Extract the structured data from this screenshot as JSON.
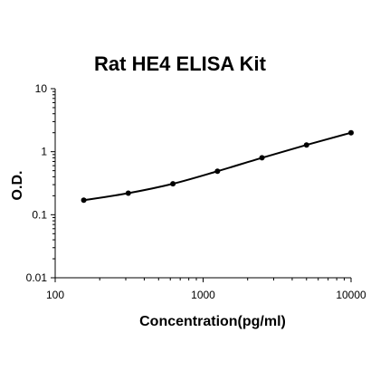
{
  "chart_data": {
    "type": "line",
    "title": "Rat HE4 ELISA Kit",
    "xlabel": "Concentration(pg/ml)",
    "ylabel": "O.D.",
    "xscale": "log",
    "yscale": "log",
    "xlim": [
      100,
      10000
    ],
    "ylim": [
      0.01,
      10
    ],
    "x_ticks": [
      100,
      1000,
      10000
    ],
    "x_tick_labels": [
      "100",
      "1000",
      "10000"
    ],
    "y_ticks": [
      0.01,
      0.1,
      1,
      10
    ],
    "y_tick_labels": [
      "0.01",
      "0.1",
      "1",
      "10"
    ],
    "grid": false,
    "series": [
      {
        "x": [
          156,
          312,
          625,
          1250,
          2500,
          5000,
          10000
        ],
        "y": [
          0.17,
          0.22,
          0.31,
          0.49,
          0.8,
          1.28,
          2.0
        ],
        "color": "#000000",
        "marker": "circle",
        "smooth": true
      }
    ]
  }
}
